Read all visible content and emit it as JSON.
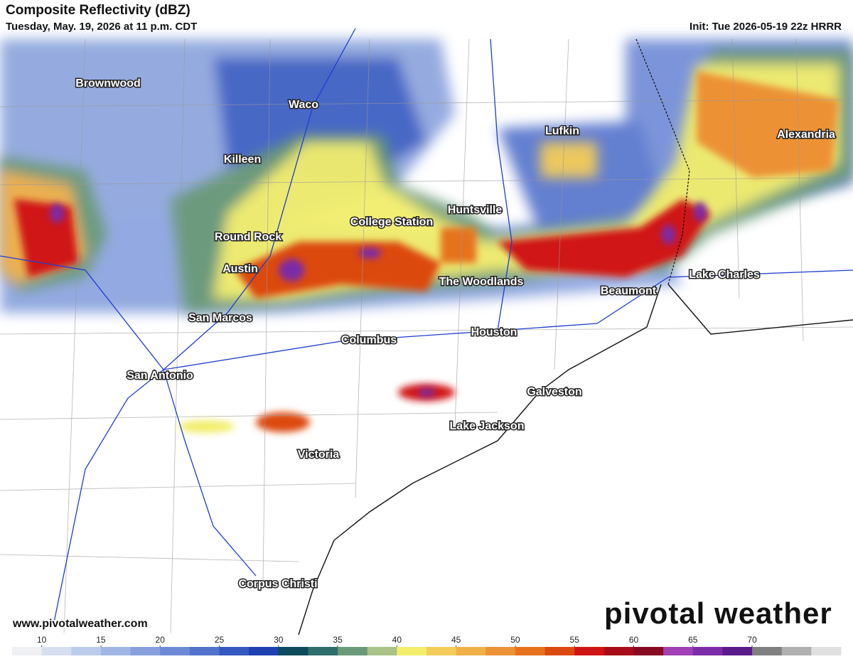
{
  "header": {
    "title": "Composite Reflectivity (dBZ)",
    "subtitle": "Tuesday, May. 19, 2026 at 11 p.m. CDT",
    "init": "Init: Tue 2026-05-19 22z HRRR"
  },
  "cities": [
    "Brownwood",
    "Waco",
    "Killeen",
    "Lufkin",
    "Alexandria",
    "Huntsville",
    "College Station",
    "Round Rock",
    "Austin",
    "The Woodlands",
    "Beaumont",
    "Lake Charles",
    "San Marcos",
    "Houston",
    "Columbus",
    "San Antonio",
    "Galveston",
    "Lake Jackson",
    "Victoria",
    "Corpus Christi"
  ],
  "footer": {
    "website": "www.pivotalweather.com",
    "logo": "pivotal weather"
  },
  "legend": {
    "ticks": [
      10,
      15,
      20,
      25,
      30,
      35,
      40,
      45,
      50,
      55,
      60,
      65,
      70
    ],
    "colors": [
      "#eef0f4",
      "#d6dff0",
      "#bccbec",
      "#a2b6e6",
      "#88a0de",
      "#6e8ad6",
      "#5272cc",
      "#3458c0",
      "#1e40b0",
      "#0c4a5c",
      "#2e6e6a",
      "#6a9a78",
      "#a8c288",
      "#f2ee6c",
      "#f4cc5a",
      "#f0b048",
      "#ec9236",
      "#e6721e",
      "#dc4a10",
      "#d01414",
      "#a80c1a",
      "#880a22",
      "#a040b4",
      "#7c2ca8",
      "#5a1c8c",
      "#808080",
      "#b0b0b0",
      "#e0e0e0"
    ]
  }
}
